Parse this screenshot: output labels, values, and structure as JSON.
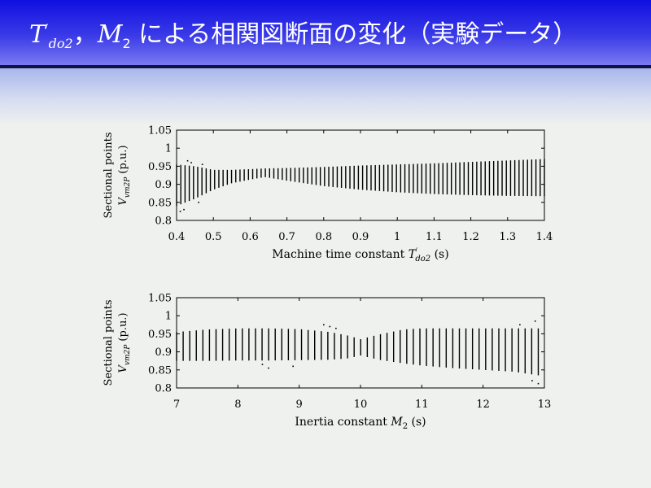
{
  "title": {
    "symbol1": "T",
    "symbol1_prime": "′",
    "symbol1_sub": "do2",
    "separator": "，",
    "symbol2": "M",
    "symbol2_sub": "2",
    "rest": " による相関図断面の変化（実験データ）"
  },
  "chart_data": [
    {
      "type": "scatter",
      "style": "vertical-segments",
      "xlabel": "Machine time constant T′do2 (s)",
      "xlabel_main": "Machine time constant ",
      "xlabel_sym": "T",
      "xlabel_prime": "′",
      "xlabel_sub": "do2",
      "xlabel_unit": " (s)",
      "ylabel_line1": "Sectional points",
      "ylabel_line2_sym": "V",
      "ylabel_line2_sub": "vm2P",
      "ylabel_line2_unit": " (p.u.)",
      "xlim": [
        0.4,
        1.4
      ],
      "ylim": [
        0.8,
        1.05
      ],
      "xticks": [
        "0.4",
        "0.5",
        "0.6",
        "0.7",
        "0.8",
        "0.9",
        "1",
        "1.1",
        "1.2",
        "1.3",
        "1.4"
      ],
      "yticks": [
        "0.8",
        "0.85",
        "0.9",
        "0.95",
        "1",
        "1.05"
      ],
      "grid": false,
      "envelope_x": [
        0.4,
        0.45,
        0.5,
        0.55,
        0.6,
        0.64,
        0.7,
        0.8,
        0.9,
        1.0,
        1.1,
        1.2,
        1.3,
        1.4
      ],
      "envelope_upper": [
        0.955,
        0.95,
        0.94,
        0.94,
        0.942,
        0.944,
        0.945,
        0.948,
        0.952,
        0.955,
        0.958,
        0.962,
        0.966,
        0.97
      ],
      "envelope_lower": [
        0.84,
        0.86,
        0.885,
        0.903,
        0.913,
        0.92,
        0.91,
        0.895,
        0.885,
        0.878,
        0.873,
        0.87,
        0.868,
        0.867
      ],
      "sample_count": 88,
      "outliers": [
        {
          "x": 0.41,
          "y": 0.825
        },
        {
          "x": 0.42,
          "y": 0.83
        },
        {
          "x": 0.43,
          "y": 0.965
        },
        {
          "x": 0.44,
          "y": 0.96
        },
        {
          "x": 0.46,
          "y": 0.85
        },
        {
          "x": 0.47,
          "y": 0.955
        }
      ]
    },
    {
      "type": "scatter",
      "style": "vertical-segments",
      "xlabel": "Inertia constant M2 (s)",
      "xlabel_main": "Inertia constant ",
      "xlabel_sym": "M",
      "xlabel_prime": "",
      "xlabel_sub": "2",
      "xlabel_unit": " (s)",
      "ylabel_line1": "Sectional points",
      "ylabel_line2_sym": "V",
      "ylabel_line2_sub": "vm2P",
      "ylabel_line2_unit": " (p.u.)",
      "xlim": [
        7,
        13
      ],
      "ylim": [
        0.8,
        1.05
      ],
      "xticks": [
        "7",
        "8",
        "9",
        "10",
        "11",
        "12",
        "13"
      ],
      "yticks": [
        "0.8",
        "0.85",
        "0.9",
        "0.95",
        "1",
        "1.05"
      ],
      "grid": false,
      "envelope_x": [
        7.0,
        7.5,
        8.0,
        8.5,
        9.0,
        9.5,
        9.8,
        10.0,
        10.3,
        10.7,
        11.0,
        11.5,
        12.0,
        12.5,
        12.9
      ],
      "envelope_upper": [
        0.955,
        0.962,
        0.965,
        0.965,
        0.963,
        0.955,
        0.945,
        0.935,
        0.948,
        0.962,
        0.965,
        0.965,
        0.965,
        0.965,
        0.965
      ],
      "envelope_lower": [
        0.875,
        0.875,
        0.876,
        0.876,
        0.877,
        0.878,
        0.882,
        0.89,
        0.878,
        0.868,
        0.862,
        0.855,
        0.85,
        0.845,
        0.835
      ],
      "sample_count": 56,
      "outliers": [
        {
          "x": 8.4,
          "y": 0.865
        },
        {
          "x": 8.5,
          "y": 0.855
        },
        {
          "x": 8.9,
          "y": 0.86
        },
        {
          "x": 9.4,
          "y": 0.975
        },
        {
          "x": 9.5,
          "y": 0.97
        },
        {
          "x": 9.6,
          "y": 0.965
        },
        {
          "x": 12.6,
          "y": 0.975
        },
        {
          "x": 12.8,
          "y": 0.82
        },
        {
          "x": 12.9,
          "y": 0.812
        },
        {
          "x": 12.85,
          "y": 0.985
        }
      ]
    }
  ]
}
